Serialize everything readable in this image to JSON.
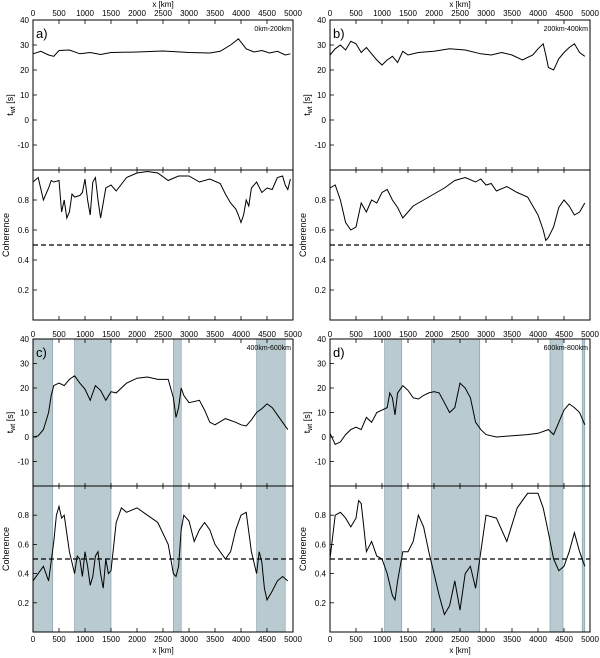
{
  "figure": {
    "top_axis_label": "x [km]",
    "bottom_axis_label": "x [km]",
    "y_label_twt": "t",
    "y_label_twt_sub": "wt",
    "y_label_twt_unit": " [s]",
    "y_label_coh": "Coherence"
  },
  "colors": {
    "line": "#000000",
    "band": "#b9cbd0",
    "band_edge": "#7d9aa3",
    "frame": "#000000"
  },
  "chart_data": [
    {
      "type": "line",
      "panel": "a)",
      "depth_label": "0km-200km",
      "x_ticks": [
        0,
        500,
        1000,
        1500,
        2000,
        2500,
        3000,
        3500,
        4000,
        4500,
        5000
      ],
      "xlim": [
        0,
        5000
      ],
      "twt": {
        "ylim": [
          -20,
          40
        ],
        "y_ticks": [
          -10,
          0,
          10,
          20,
          30,
          40
        ],
        "x": [
          0,
          150,
          300,
          400,
          500,
          700,
          900,
          1100,
          1300,
          1500,
          2000,
          2500,
          3000,
          3400,
          3600,
          3800,
          3950,
          4100,
          4250,
          4400,
          4550,
          4700,
          4850,
          4950
        ],
        "y": [
          26.5,
          27.5,
          26.0,
          25.5,
          27.8,
          28.0,
          26.5,
          27.0,
          26.2,
          27.0,
          27.2,
          27.6,
          27.0,
          26.8,
          27.5,
          30.0,
          32.5,
          28.5,
          27.2,
          27.8,
          26.8,
          27.5,
          26.0,
          26.5
        ]
      },
      "coherence": {
        "ylim": [
          0,
          1
        ],
        "y_ticks": [
          0.2,
          0.4,
          0.6,
          0.8
        ],
        "threshold": 0.5,
        "x": [
          0,
          100,
          200,
          300,
          350,
          400,
          500,
          550,
          600,
          650,
          700,
          750,
          800,
          900,
          950,
          1000,
          1050,
          1100,
          1150,
          1200,
          1250,
          1300,
          1400,
          1500,
          1600,
          1800,
          2000,
          2200,
          2400,
          2600,
          2800,
          3000,
          3200,
          3400,
          3600,
          3700,
          3800,
          3900,
          3950,
          4000,
          4050,
          4100,
          4150,
          4200,
          4300,
          4400,
          4500,
          4600,
          4700,
          4800,
          4850,
          4900,
          4950
        ],
        "y": [
          0.92,
          0.95,
          0.8,
          0.88,
          0.93,
          0.92,
          0.93,
          0.72,
          0.8,
          0.68,
          0.72,
          0.84,
          0.82,
          0.83,
          0.85,
          0.94,
          0.8,
          0.7,
          0.92,
          0.95,
          0.8,
          0.68,
          0.88,
          0.9,
          0.86,
          0.95,
          0.98,
          0.99,
          0.98,
          0.93,
          0.96,
          0.96,
          0.92,
          0.94,
          0.91,
          0.84,
          0.78,
          0.74,
          0.7,
          0.65,
          0.7,
          0.8,
          0.76,
          0.88,
          0.92,
          0.85,
          0.88,
          0.87,
          0.95,
          0.96,
          0.9,
          0.87,
          0.94
        ]
      },
      "shaded_bands": []
    },
    {
      "type": "line",
      "panel": "b)",
      "depth_label": "200km-400km",
      "x_ticks": [
        0,
        500,
        1000,
        1500,
        2000,
        2500,
        3000,
        3500,
        4000,
        4500,
        5000
      ],
      "xlim": [
        0,
        5000
      ],
      "twt": {
        "ylim": [
          -20,
          40
        ],
        "y_ticks": [
          -10,
          0,
          10,
          20,
          30,
          40
        ],
        "x": [
          0,
          100,
          200,
          300,
          400,
          500,
          600,
          700,
          800,
          900,
          1000,
          1100,
          1200,
          1300,
          1400,
          1500,
          1700,
          2000,
          2300,
          2600,
          2900,
          3100,
          3300,
          3500,
          3700,
          3900,
          4000,
          4100,
          4150,
          4200,
          4300,
          4400,
          4500,
          4600,
          4700,
          4800,
          4900
        ],
        "y": [
          26.0,
          28.5,
          30.0,
          28.0,
          31.5,
          30.5,
          27.0,
          29.0,
          26.5,
          24.0,
          22.0,
          24.0,
          25.5,
          23.0,
          27.5,
          26.0,
          27.0,
          27.5,
          28.5,
          28.0,
          26.5,
          26.0,
          27.0,
          26.0,
          24.0,
          26.0,
          28.5,
          30.5,
          26.0,
          21.0,
          20.0,
          24.5,
          27.0,
          29.0,
          30.5,
          27.0,
          25.5
        ]
      },
      "coherence": {
        "ylim": [
          0,
          1
        ],
        "y_ticks": [
          0.2,
          0.4,
          0.6,
          0.8
        ],
        "threshold": 0.5,
        "x": [
          0,
          100,
          200,
          300,
          400,
          500,
          600,
          700,
          800,
          900,
          1000,
          1100,
          1200,
          1300,
          1400,
          1500,
          1600,
          1800,
          2000,
          2200,
          2400,
          2600,
          2800,
          2900,
          3000,
          3100,
          3200,
          3400,
          3600,
          3800,
          4000,
          4100,
          4150,
          4200,
          4300,
          4400,
          4500,
          4600,
          4700,
          4800,
          4900
        ],
        "y": [
          0.88,
          0.9,
          0.8,
          0.65,
          0.6,
          0.62,
          0.78,
          0.72,
          0.8,
          0.78,
          0.85,
          0.87,
          0.8,
          0.75,
          0.68,
          0.72,
          0.76,
          0.8,
          0.84,
          0.88,
          0.93,
          0.95,
          0.92,
          0.94,
          0.9,
          0.91,
          0.86,
          0.89,
          0.85,
          0.82,
          0.7,
          0.6,
          0.53,
          0.55,
          0.62,
          0.75,
          0.8,
          0.76,
          0.7,
          0.72,
          0.78
        ]
      },
      "shaded_bands": []
    },
    {
      "type": "line",
      "panel": "c)",
      "depth_label": "400km-600km",
      "x_ticks": [
        0,
        500,
        1000,
        1500,
        2000,
        2500,
        3000,
        3500,
        4000,
        4500,
        5000
      ],
      "xlim": [
        0,
        5000
      ],
      "twt": {
        "ylim": [
          -20,
          40
        ],
        "y_ticks": [
          -10,
          0,
          10,
          20,
          30,
          40
        ],
        "x": [
          0,
          100,
          200,
          300,
          350,
          400,
          500,
          600,
          700,
          800,
          900,
          1000,
          1100,
          1200,
          1300,
          1400,
          1500,
          1600,
          1800,
          2000,
          2200,
          2400,
          2600,
          2700,
          2750,
          2800,
          2850,
          2900,
          3000,
          3200,
          3300,
          3400,
          3500,
          3700,
          3900,
          4000,
          4100,
          4200,
          4300,
          4400,
          4500,
          4600,
          4700,
          4800,
          4900
        ],
        "y": [
          0.0,
          0.5,
          3.0,
          10.0,
          17.0,
          21.0,
          22.0,
          21.0,
          23.5,
          25.0,
          22.0,
          19.5,
          15.0,
          21.0,
          19.0,
          15.0,
          18.5,
          18.0,
          22.0,
          24.0,
          24.5,
          23.5,
          23.5,
          16.0,
          8.0,
          12.0,
          20.0,
          17.0,
          14.0,
          15.0,
          11.0,
          6.0,
          5.0,
          7.5,
          6.0,
          5.0,
          4.5,
          7.0,
          10.0,
          11.5,
          13.5,
          12.0,
          9.0,
          6.0,
          3.0
        ]
      },
      "coherence": {
        "ylim": [
          0,
          1
        ],
        "y_ticks": [
          0.2,
          0.4,
          0.6,
          0.8
        ],
        "threshold": 0.5,
        "x": [
          0,
          100,
          200,
          300,
          400,
          450,
          500,
          550,
          600,
          700,
          800,
          850,
          900,
          950,
          1000,
          1050,
          1100,
          1150,
          1200,
          1250,
          1300,
          1350,
          1400,
          1450,
          1500,
          1600,
          1700,
          1800,
          2000,
          2200,
          2400,
          2600,
          2700,
          2750,
          2800,
          2850,
          2900,
          3000,
          3100,
          3200,
          3300,
          3400,
          3500,
          3700,
          3800,
          3900,
          4000,
          4100,
          4200,
          4300,
          4350,
          4400,
          4450,
          4500,
          4600,
          4700,
          4800,
          4900
        ],
        "y": [
          0.35,
          0.4,
          0.45,
          0.35,
          0.62,
          0.8,
          0.86,
          0.78,
          0.8,
          0.55,
          0.4,
          0.52,
          0.5,
          0.38,
          0.55,
          0.45,
          0.32,
          0.38,
          0.52,
          0.55,
          0.4,
          0.3,
          0.5,
          0.4,
          0.42,
          0.75,
          0.85,
          0.82,
          0.85,
          0.8,
          0.75,
          0.6,
          0.4,
          0.38,
          0.45,
          0.7,
          0.8,
          0.76,
          0.62,
          0.7,
          0.75,
          0.7,
          0.6,
          0.5,
          0.55,
          0.7,
          0.8,
          0.82,
          0.55,
          0.4,
          0.55,
          0.48,
          0.3,
          0.22,
          0.28,
          0.35,
          0.38,
          0.35
        ]
      },
      "shaded_bands": [
        [
          0,
          380
        ],
        [
          800,
          1500
        ],
        [
          2700,
          2850
        ],
        [
          4300,
          4850
        ]
      ]
    },
    {
      "type": "line",
      "panel": "d)",
      "depth_label": "600km-800km",
      "x_ticks": [
        0,
        500,
        1000,
        1500,
        2000,
        2500,
        3000,
        3500,
        4000,
        4500,
        5000
      ],
      "xlim": [
        0,
        5000
      ],
      "twt": {
        "ylim": [
          -20,
          40
        ],
        "y_ticks": [
          -10,
          0,
          10,
          20,
          30,
          40
        ],
        "x": [
          0,
          100,
          200,
          300,
          400,
          500,
          600,
          700,
          800,
          900,
          1000,
          1100,
          1150,
          1200,
          1250,
          1300,
          1400,
          1500,
          1600,
          1700,
          1800,
          1900,
          2000,
          2100,
          2200,
          2300,
          2400,
          2500,
          2600,
          2700,
          2800,
          2900,
          3000,
          3200,
          3500,
          3800,
          4000,
          4200,
          4300,
          4400,
          4500,
          4600,
          4700,
          4800,
          4900
        ],
        "y": [
          1.5,
          -3.0,
          -2.0,
          1.0,
          3.0,
          4.0,
          3.0,
          8.0,
          6.0,
          10.0,
          11.0,
          12.0,
          18.0,
          16.0,
          9.0,
          18.0,
          21.0,
          19.0,
          16.0,
          15.5,
          17.0,
          18.0,
          18.5,
          18.0,
          14.0,
          10.0,
          12.0,
          22.0,
          20.0,
          16.0,
          6.0,
          3.0,
          1.0,
          0.0,
          0.5,
          1.0,
          1.5,
          3.0,
          1.0,
          6.0,
          11.0,
          13.5,
          12.0,
          10.0,
          5.0
        ]
      },
      "coherence": {
        "ylim": [
          0,
          1
        ],
        "y_ticks": [
          0.2,
          0.4,
          0.6,
          0.8
        ],
        "threshold": 0.5,
        "x": [
          0,
          100,
          200,
          300,
          400,
          500,
          550,
          600,
          650,
          700,
          800,
          900,
          1000,
          1100,
          1200,
          1250,
          1300,
          1400,
          1500,
          1600,
          1700,
          1800,
          1900,
          2000,
          2100,
          2200,
          2300,
          2400,
          2500,
          2600,
          2700,
          2800,
          2900,
          3000,
          3200,
          3400,
          3600,
          3800,
          4000,
          4100,
          4200,
          4300,
          4400,
          4500,
          4600,
          4700,
          4800,
          4900
        ],
        "y": [
          0.5,
          0.8,
          0.82,
          0.78,
          0.72,
          0.78,
          0.9,
          0.88,
          0.72,
          0.55,
          0.62,
          0.52,
          0.5,
          0.4,
          0.25,
          0.22,
          0.35,
          0.55,
          0.55,
          0.62,
          0.8,
          0.72,
          0.55,
          0.4,
          0.25,
          0.12,
          0.18,
          0.35,
          0.15,
          0.4,
          0.45,
          0.3,
          0.55,
          0.8,
          0.78,
          0.62,
          0.85,
          0.95,
          0.95,
          0.85,
          0.68,
          0.5,
          0.42,
          0.45,
          0.55,
          0.68,
          0.55,
          0.45
        ]
      },
      "shaded_bands": [
        [
          1050,
          1380
        ],
        [
          1950,
          2880
        ],
        [
          4230,
          4480
        ],
        [
          4850,
          4900
        ]
      ]
    }
  ]
}
